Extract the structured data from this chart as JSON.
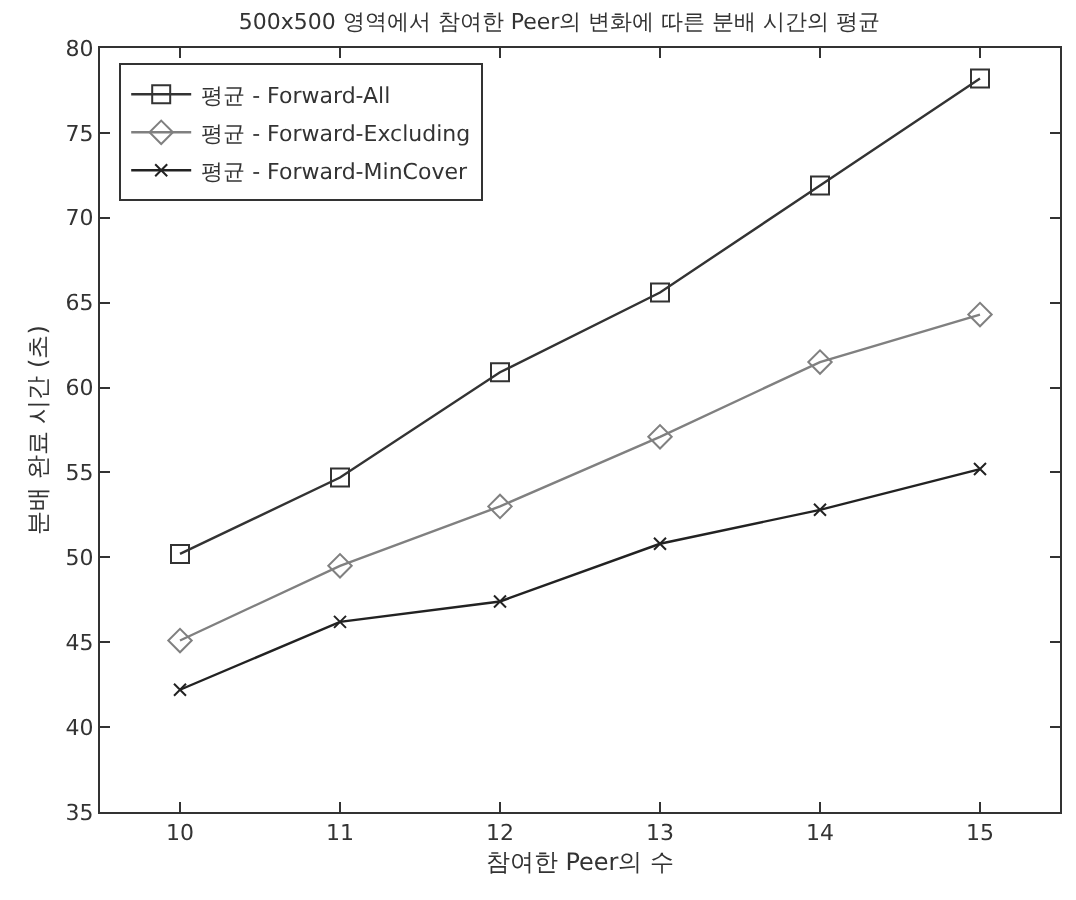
{
  "chart_data": {
    "type": "line",
    "title": "500x500 영역에서 참여한 Peer의 변화에 따른 분배 시간의 평균",
    "xlabel": "참여한 Peer의 수",
    "ylabel": "분배 완료 시간 (초)",
    "x": [
      10,
      11,
      12,
      13,
      14,
      15
    ],
    "series": [
      {
        "name": "평균 - Forward-All",
        "color": "#333333",
        "marker": "square",
        "values": [
          50.2,
          54.7,
          60.9,
          65.6,
          71.9,
          78.2
        ]
      },
      {
        "name": "평균 - Forward-Excluding",
        "color": "#808080",
        "marker": "diamond",
        "values": [
          45.1,
          49.5,
          53.0,
          57.1,
          61.5,
          64.3
        ]
      },
      {
        "name": "평균 - Forward-MinCover",
        "color": "#222222",
        "marker": "cross",
        "values": [
          42.2,
          46.2,
          47.4,
          50.8,
          52.8,
          55.2
        ]
      }
    ],
    "xlim": [
      9.5,
      15.5
    ],
    "xticks": [
      10,
      11,
      12,
      13,
      14,
      15
    ],
    "ylim": [
      35,
      80
    ],
    "yticks": [
      35,
      40,
      45,
      50,
      55,
      60,
      65,
      70,
      75,
      80
    ],
    "grid": false,
    "legend": "top left",
    "line_style": "solid"
  }
}
